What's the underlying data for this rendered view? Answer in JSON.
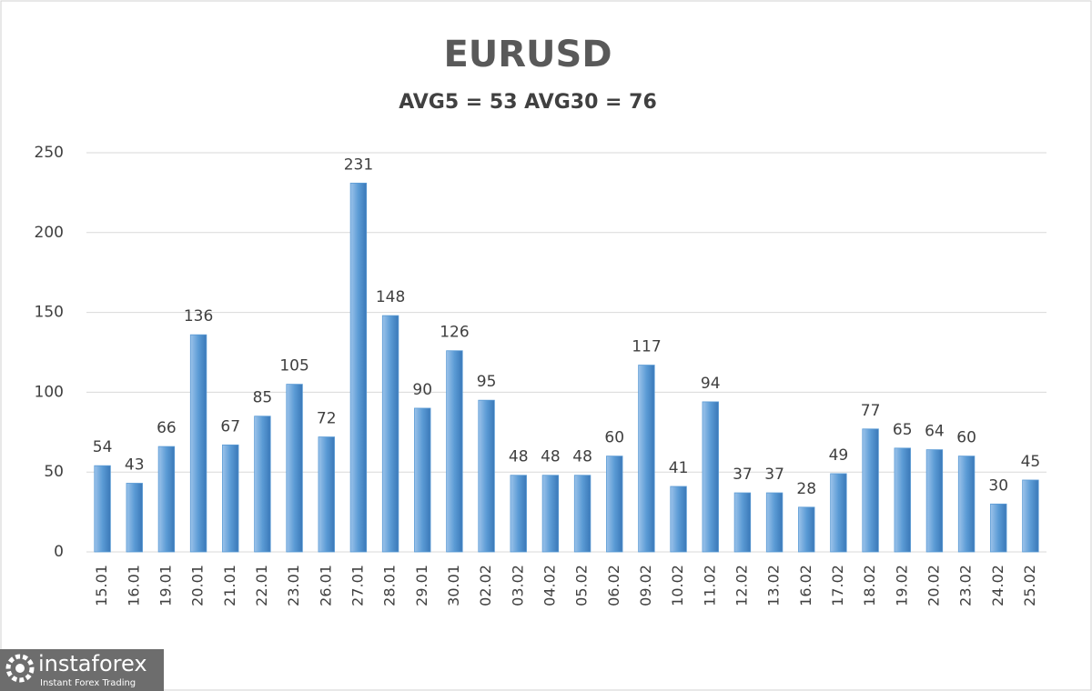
{
  "chart_data": {
    "type": "bar",
    "title": "EURUSD",
    "subtitle": "AVG5 = 53 AVG30 = 76",
    "categories": [
      "15.01",
      "16.01",
      "19.01",
      "20.01",
      "21.01",
      "22.01",
      "23.01",
      "26.01",
      "27.01",
      "28.01",
      "29.01",
      "30.01",
      "02.02",
      "03.02",
      "04.02",
      "05.02",
      "06.02",
      "09.02",
      "10.02",
      "11.02",
      "12.02",
      "13.02",
      "16.02",
      "17.02",
      "18.02",
      "19.02",
      "20.02",
      "23.02",
      "24.02",
      "25.02"
    ],
    "values": [
      54,
      43,
      66,
      136,
      67,
      85,
      105,
      72,
      231,
      148,
      90,
      126,
      95,
      48,
      48,
      48,
      60,
      117,
      41,
      94,
      37,
      37,
      28,
      49,
      77,
      65,
      64,
      60,
      30,
      45
    ],
    "color": "#5b9bd5",
    "ylim": [
      0,
      250
    ],
    "yticks": [
      0,
      50,
      100,
      150,
      200,
      250
    ],
    "grid": true
  },
  "logo": {
    "name": "instaforex",
    "tagline": "Instant Forex Trading"
  }
}
